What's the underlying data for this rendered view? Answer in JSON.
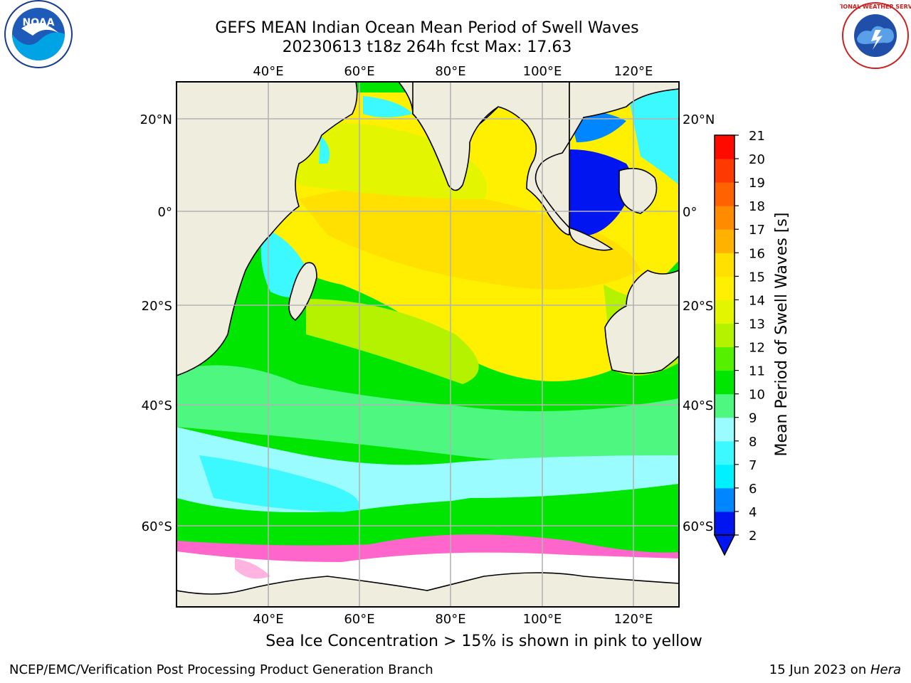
{
  "header": {
    "title_line1": "GEFS MEAN Indian Ocean Mean Period of Swell Waves",
    "title_line2": "20230613 t18z 264h fcst   Max: 17.63"
  },
  "map": {
    "lon_labels": [
      "40°E",
      "60°E",
      "80°E",
      "100°E",
      "120°E"
    ],
    "lat_labels": [
      "20°N",
      "0°",
      "20°S",
      "40°S",
      "60°S"
    ],
    "colors": {
      "land": "#efedde",
      "grid": "#b3b3b3",
      "coast": "#000000",
      "ice": "#ffffff"
    }
  },
  "colorbar": {
    "label": "Mean Period of Swell Waves [s]",
    "ticks": [
      "2",
      "4",
      "6",
      "7",
      "8",
      "9",
      "10",
      "11",
      "12",
      "13",
      "14",
      "15",
      "16",
      "17",
      "18",
      "19",
      "20",
      "21"
    ],
    "colors": [
      "#0015ef",
      "#0086ff",
      "#00f0ff",
      "#3cf8ff",
      "#9afcff",
      "#4ef880",
      "#00e600",
      "#55f000",
      "#b4f200",
      "#e3f600",
      "#ffef00",
      "#ffe000",
      "#ffb300",
      "#ff8c00",
      "#ff6200",
      "#ff3a00",
      "#ff0a00"
    ],
    "extend_color": "#0015ef"
  },
  "caption": "Sea Ice Concentration > 15% is shown in pink to yellow",
  "footer": {
    "left": "NCEP/EMC/Verification Post Processing Product Generation Branch",
    "right_date": "15 Jun 2023 on ",
    "right_machine": "Hera"
  },
  "logos": {
    "noaa_text": "NOAA",
    "nws_text": "NATIONAL WEATHER SERVICE",
    "noaa_ring_text": "NATIONAL OCEANIC AND ATMOSPHERIC ADMINISTRATION · U.S. DEPARTMENT OF COMMERCE"
  }
}
